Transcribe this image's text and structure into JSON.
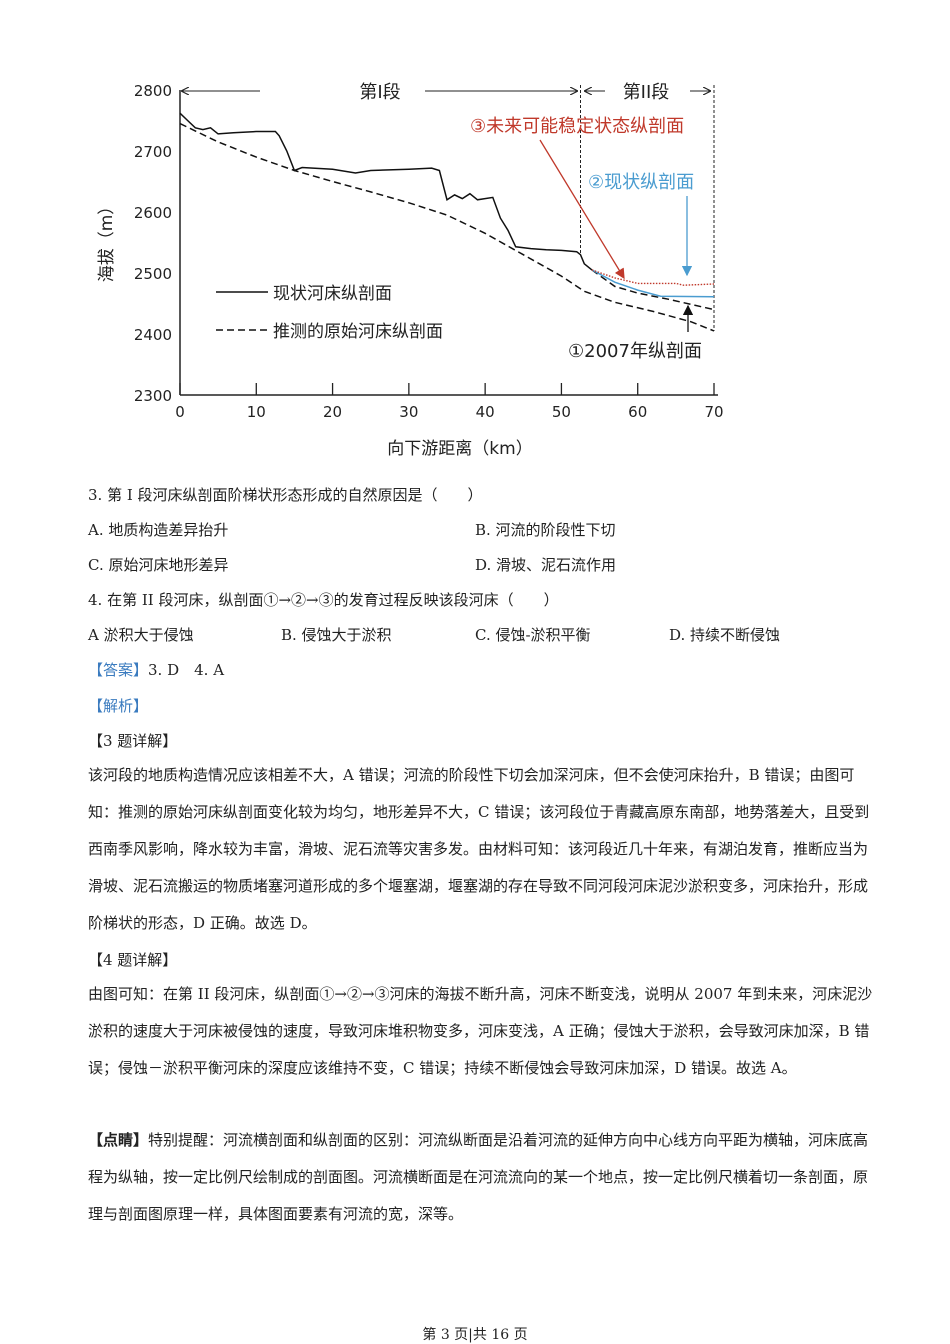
{
  "chart_data": {
    "type": "line",
    "xlabel": "向下游距离（km）",
    "ylabel": "海拔（m）",
    "xlim": [
      0,
      70
    ],
    "ylim": [
      2300,
      2800
    ],
    "xticks": [
      "0",
      "10",
      "20",
      "30",
      "40",
      "50",
      "60",
      "70"
    ],
    "yticks": [
      "2300",
      "2400",
      "2500",
      "2600",
      "2700",
      "2800"
    ],
    "section_labels": [
      "第I段",
      "第II段"
    ],
    "section_boundary_km": 52.5,
    "legend": [
      "现状河床纵剖面",
      "推测的原始河床纵剖面"
    ],
    "legend_placement": "lower-left",
    "annotations": [
      "③未来可能稳定状态纵剖面",
      "②现状纵剖面",
      "①2007年纵剖面"
    ],
    "series": [
      {
        "name": "现状河床纵剖面",
        "color": "#111111",
        "style": "solid",
        "x": [
          0,
          1,
          2,
          3,
          4,
          5,
          7,
          10,
          12.5,
          13,
          14,
          15,
          16,
          20,
          23,
          25,
          30,
          33,
          34,
          35,
          36,
          37,
          38,
          39,
          41,
          42,
          43,
          44,
          46,
          48,
          50,
          52,
          52.5,
          53,
          54
        ],
        "y": [
          2762,
          2750,
          2738,
          2735,
          2738,
          2728,
          2730,
          2732,
          2732,
          2725,
          2700,
          2668,
          2673,
          2670,
          2664,
          2668,
          2670,
          2672,
          2668,
          2620,
          2628,
          2622,
          2630,
          2620,
          2624,
          2590,
          2570,
          2543,
          2540,
          2538,
          2537,
          2535,
          2530,
          2515,
          2505
        ]
      },
      {
        "name": "推测的原始河床纵剖面",
        "color": "#111111",
        "style": "dashed",
        "x": [
          0,
          5,
          10,
          15,
          20,
          25,
          30,
          35,
          40,
          45,
          50,
          53,
          57,
          62,
          67,
          70
        ],
        "y": [
          2745,
          2715,
          2690,
          2668,
          2650,
          2633,
          2615,
          2595,
          2565,
          2530,
          2495,
          2470,
          2452,
          2437,
          2420,
          2405
        ]
      },
      {
        "name": "①2007年纵剖面",
        "color": "#111111",
        "style": "dashed",
        "x": [
          54,
          57,
          60,
          64,
          70
        ],
        "y": [
          2505,
          2478,
          2467,
          2457,
          2440
        ]
      },
      {
        "name": "②现状纵剖面",
        "color": "#4a9cd0",
        "style": "solid",
        "x": [
          54,
          57,
          60,
          63,
          70
        ],
        "y": [
          2505,
          2485,
          2472,
          2462,
          2461
        ]
      },
      {
        "name": "③未来可能稳定状态纵剖面",
        "color": "#c0392b",
        "style": "dotted",
        "x": [
          54,
          57,
          60,
          65,
          66,
          70
        ],
        "y": [
          2505,
          2492,
          2483,
          2483,
          2480,
          2482
        ]
      }
    ]
  },
  "questions": {
    "q3": {
      "stem": "3. 第 I 段河床纵剖面阶梯状形态形成的自然原因是（　　）",
      "options": [
        "A. 地质构造差异抬升",
        "B. 河流的阶段性下切",
        "C. 原始河床地形差异",
        "D. 滑坡、泥石流作用"
      ]
    },
    "q4": {
      "stem": "4. 在第 II 段河床，纵剖面①→②→③的发育过程反映该段河床（　　）",
      "options": [
        "A  淤积大于侵蚀",
        "B. 侵蚀大于淤积",
        "C. 侵蚀-淤积平衡",
        "D. 持续不断侵蚀"
      ]
    }
  },
  "answer": {
    "label": "【答案】",
    "text": "3. D　4. A"
  },
  "analysis": {
    "label": "【解析】"
  },
  "detail3": {
    "heading": "【3 题详解】",
    "text": "该河段的地质构造情况应该相差不大，A 错误；河流的阶段性下切会加深河床，但不会使河床抬升，B 错误；由图可知：推测的原始河床纵剖面变化较为均匀，地形差异不大，C 错误；该河段位于青藏高原东南部，地势落差大，且受到西南季风影响，降水较为丰富，滑坡、泥石流等灾害多发。由材料可知：该河段近几十年来，有湖泊发育，推断应当为滑坡、泥石流搬运的物质堵塞河道形成的多个堰塞湖，堰塞湖的存在导致不同河段河床泥沙淤积变多，河床抬升，形成阶梯状的形态，D 正确。故选 D。"
  },
  "detail4": {
    "heading": "【4 题详解】",
    "text": "由图可知：在第 II 段河床，纵剖面①→②→③河床的海拔不断升高，河床不断变浅，说明从 2007 年到未来，河床泥沙淤积的速度大于河床被侵蚀的速度，导致河床堆积物变多，河床变浅，A 正确；侵蚀大于淤积，会导致河床加深，B 错误；侵蚀－淤积平衡河床的深度应该维持不变，C 错误；持续不断侵蚀会导致河床加深，D 错误。故选 A。"
  },
  "tip": {
    "heading": "【点睛】",
    "text": "特别提醒：河流横剖面和纵剖面的区别：河流纵断面是沿着河流的延伸方向中心线方向平距为横轴，河床底高程为纵轴，按一定比例尺绘制成的剖面图。河流横断面是在河流流向的某一个地点，按一定比例尺横着切一条剖面，原理与剖面图原理一样，具体图面要素有河流的宽，深等。"
  },
  "footer": "第 3 页|共 16 页"
}
